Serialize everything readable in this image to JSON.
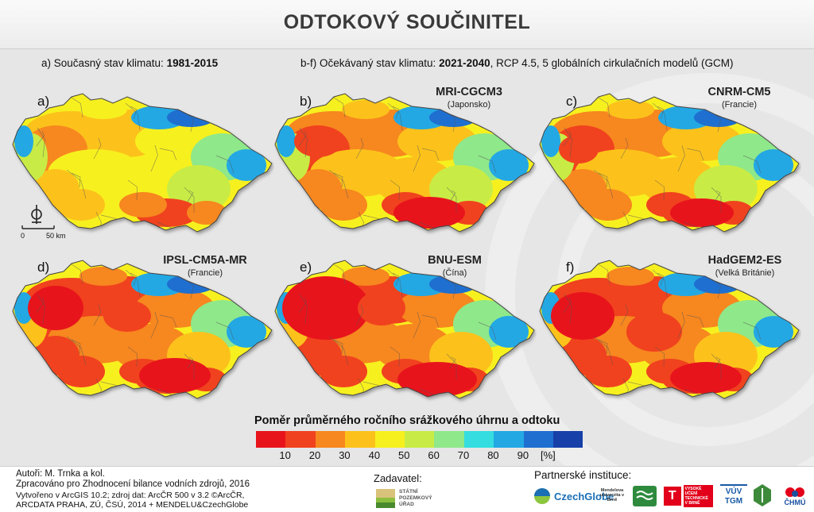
{
  "title": "ODTOKOVÝ SOUČINITEL",
  "heading_current": {
    "prefix": "a) Současný stav klimatu: ",
    "period": "1981-2015"
  },
  "heading_future": {
    "prefix": "b-f) Očekávaný stav klimatu: ",
    "period": "2021-2040",
    "suffix": ", RCP 4.5, 5 globálních cirkulačních modelů (GCM)"
  },
  "panels": [
    {
      "label": "a)",
      "model": "",
      "country": ""
    },
    {
      "label": "b)",
      "model": "MRI-CGCM3",
      "country": "(Japonsko)"
    },
    {
      "label": "c)",
      "model": "CNRM-CM5",
      "country": "(Francie)"
    },
    {
      "label": "d)",
      "model": "IPSL-CM5A-MR",
      "country": "(Francie)"
    },
    {
      "label": "e)",
      "model": "BNU-ESM",
      "country": "(Čína)"
    },
    {
      "label": "f)",
      "model": "HadGEM2-ES",
      "country": "(Velká Británie)"
    }
  ],
  "scale": {
    "zero": "0",
    "distance": "50 km"
  },
  "legend": {
    "title": "Poměr průměrného ročního srážkového úhrnu a odtoku",
    "unit": "[%]",
    "ticks": [
      "10",
      "20",
      "30",
      "40",
      "50",
      "60",
      "70",
      "80",
      "90"
    ],
    "colors": [
      "#e8141c",
      "#f0421e",
      "#f7871f",
      "#fcc21b",
      "#f7f01f",
      "#c8ec45",
      "#8fe88a",
      "#35dde0",
      "#23a8e4",
      "#1f6fd0",
      "#1740a8"
    ]
  },
  "footer": {
    "authors": "Autoři: M. Trnka a kol.",
    "processed": "Zpracováno pro Zhodnocení bilance vodních zdrojů, 2016",
    "created": "Vytvořeno v ArcGIS 10.2; zdroj dat: ArcČR 500 v 3.2 ©ArcČR,",
    "sources": "ARCDATA PRAHA, ZÚ, ČSÚ, 2014 + MENDELU&CzechGlobe",
    "client_label": "Zadavatel:",
    "client_logo": "STÁTNÍ POZEMKOVÝ ÚŘAD",
    "partners_label": "Partnerské instituce:",
    "partner_logos": [
      "CzechGlobe",
      "Mendelova univerzita v Brně",
      "VÚV TGM",
      "VYSOKÉ UČENÍ TECHNICKÉ V BRNĚ",
      "ČHMÚ"
    ]
  }
}
